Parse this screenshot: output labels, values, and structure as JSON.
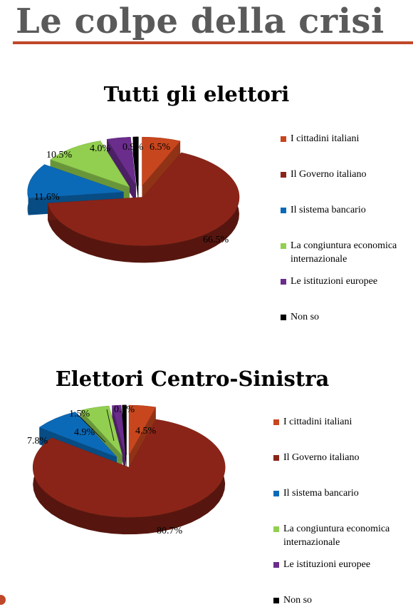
{
  "page": {
    "title": "Le colpe della crisi",
    "accent_color": "#c0482a"
  },
  "chart_data": [
    {
      "type": "pie",
      "title": "Tutti gli elettori",
      "categories": [
        "I cittadini italiani",
        "Il Governo italiano",
        "Il sistema bancario",
        "La congiuntura economica internazionale",
        "Le istituzioni europee",
        "Non so"
      ],
      "values": [
        6.5,
        66.5,
        11.6,
        10.5,
        4.0,
        0.9
      ],
      "value_labels": [
        "6.5%",
        "66.5%",
        "11.6%",
        "10.5%",
        "4.0%",
        "0.9%"
      ],
      "colors": [
        "#c8461e",
        "#8b2418",
        "#0b6ab8",
        "#92cf50",
        "#6a2d8c",
        "#000000"
      ],
      "legend_placement": "right",
      "style": "3d-exploded"
    },
    {
      "type": "pie",
      "title": "Elettori Centro-Sinistra",
      "categories": [
        "I cittadini italiani",
        "Il Governo italiano",
        "Il sistema bancario",
        "La congiuntura economica internazionale",
        "Le istituzioni europee",
        "Non so"
      ],
      "values": [
        4.5,
        80.7,
        7.8,
        4.9,
        1.5,
        0.7
      ],
      "value_labels": [
        "4.5%",
        "80.7%",
        "7.8%",
        "4.9%",
        "1.5%",
        "0.7%"
      ],
      "colors": [
        "#c8461e",
        "#8b2418",
        "#0b6ab8",
        "#92cf50",
        "#6a2d8c",
        "#000000"
      ],
      "legend_placement": "right",
      "style": "3d-exploded"
    }
  ]
}
